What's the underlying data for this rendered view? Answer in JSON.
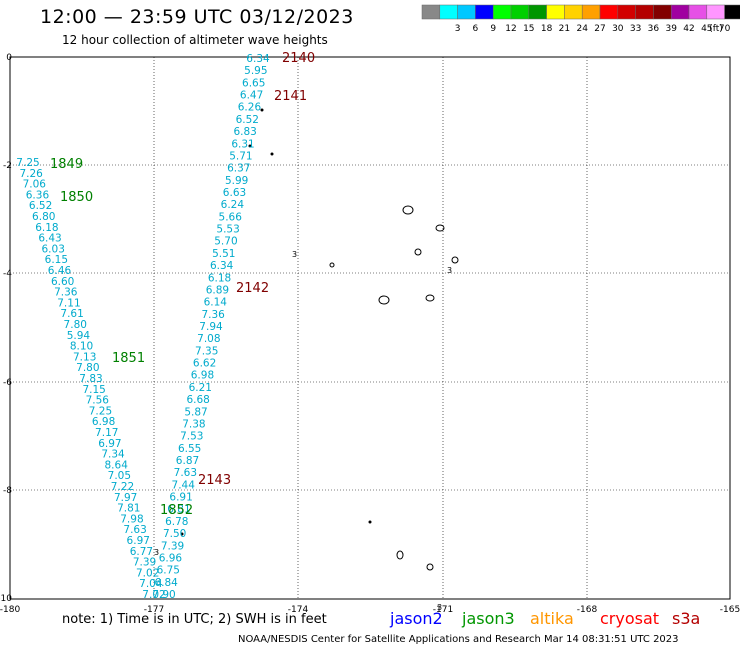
{
  "header": {
    "title": "12:00 — 23:59 UTC 03/12/2023",
    "subtitle": "12 hour collection of altimeter wave heights"
  },
  "legend": {
    "unit": "(ft)",
    "swatches": [
      {
        "label": "3",
        "color": "#00ffff"
      },
      {
        "label": "6",
        "color": "#00c8ff"
      },
      {
        "label": "9",
        "color": "#0000ff"
      },
      {
        "label": "12",
        "color": "#00ff00"
      },
      {
        "label": "15",
        "color": "#00d000"
      },
      {
        "label": "18",
        "color": "#009600"
      },
      {
        "label": "21",
        "color": "#ffff00"
      },
      {
        "label": "24",
        "color": "#ffd200"
      },
      {
        "label": "27",
        "color": "#ffa000"
      },
      {
        "label": "30",
        "color": "#ff0000"
      },
      {
        "label": "33",
        "color": "#d20000"
      },
      {
        "label": "36",
        "color": "#b40000"
      },
      {
        "label": "39",
        "color": "#820000"
      },
      {
        "label": "42",
        "color": "#a000a0"
      },
      {
        "label": "45",
        "color": "#e650e6"
      },
      {
        "label": "70",
        "color": "#ff96ff"
      },
      {
        "label": "",
        "color": "#000000"
      }
    ],
    "first_color": "#888888"
  },
  "map": {
    "lon_ticks": [
      "-180",
      "-177",
      "-174",
      "-171",
      "-168",
      "-165"
    ],
    "lat_ticks": [
      "0",
      "-2",
      "-4",
      "-6",
      "-8",
      "-10"
    ]
  },
  "tracks": {
    "jason3_color": "#008000",
    "cryosat_color": "#800000",
    "value_color": "#00aacc",
    "pass_labels": [
      {
        "text": "2140",
        "sat": "cryosat"
      },
      {
        "text": "2141",
        "sat": "cryosat"
      },
      {
        "text": "2142",
        "sat": "cryosat"
      },
      {
        "text": "2143",
        "sat": "cryosat"
      },
      {
        "text": "1849",
        "sat": "jason3"
      },
      {
        "text": "1850",
        "sat": "jason3"
      },
      {
        "text": "1851",
        "sat": "jason3"
      },
      {
        "text": "1852",
        "sat": "jason3"
      }
    ],
    "track_a_values": [
      "6.34",
      "5.95",
      "6.65",
      "6.47",
      "6.26",
      "6.52",
      "6.83",
      "6.31",
      "5.71",
      "6.37",
      "5.99",
      "6.63",
      "6.24",
      "5.66",
      "5.53",
      "5.70",
      "5.51",
      "6.34",
      "6.18",
      "6.89",
      "6.14",
      "7.36",
      "7.94",
      "7.08",
      "7.35",
      "6.62",
      "6.98",
      "6.21",
      "6.68",
      "5.87",
      "7.38",
      "7.53",
      "6.55",
      "6.87",
      "7.63",
      "7.44",
      "6.91",
      "6.81",
      "6.78",
      "7.50",
      "7.39",
      "6.96",
      "6.75",
      "6.84",
      "7.90"
    ],
    "track_b_values": [
      "7.25",
      "7.26",
      "7.06",
      "6.36",
      "6.52",
      "6.80",
      "6.18",
      "6.43",
      "6.03",
      "6.15",
      "6.46",
      "6.60",
      "7.36",
      "7.11",
      "7.61",
      "7.80",
      "5.94",
      "8.10",
      "7.13",
      "7.80",
      "7.83",
      "7.15",
      "7.56",
      "7.25",
      "6.98",
      "7.17",
      "6.97",
      "7.34",
      "8.64",
      "7.05",
      "7.22",
      "7.97",
      "7.81",
      "7.98",
      "7.63",
      "6.97",
      "6.77",
      "7.39",
      "7.02",
      "7.04",
      "7.02"
    ],
    "stray_labels": [
      "3",
      "3",
      "3",
      "3"
    ]
  },
  "footer": {
    "note": "note:  1) Time is in UTC;  2) SWH is in feet",
    "satellites": [
      {
        "name": "jason2",
        "color": "#0000ff"
      },
      {
        "name": "jason3",
        "color": "#009600"
      },
      {
        "name": "altika",
        "color": "#ff9600"
      },
      {
        "name": "cryosat",
        "color": "#ff0000"
      },
      {
        "name": "s3a",
        "color": "#b40000"
      }
    ],
    "credit": "NOAA/NESDIS Center for Satellite Applications and Research    Mar 14 08:31:51 UTC 2023"
  }
}
